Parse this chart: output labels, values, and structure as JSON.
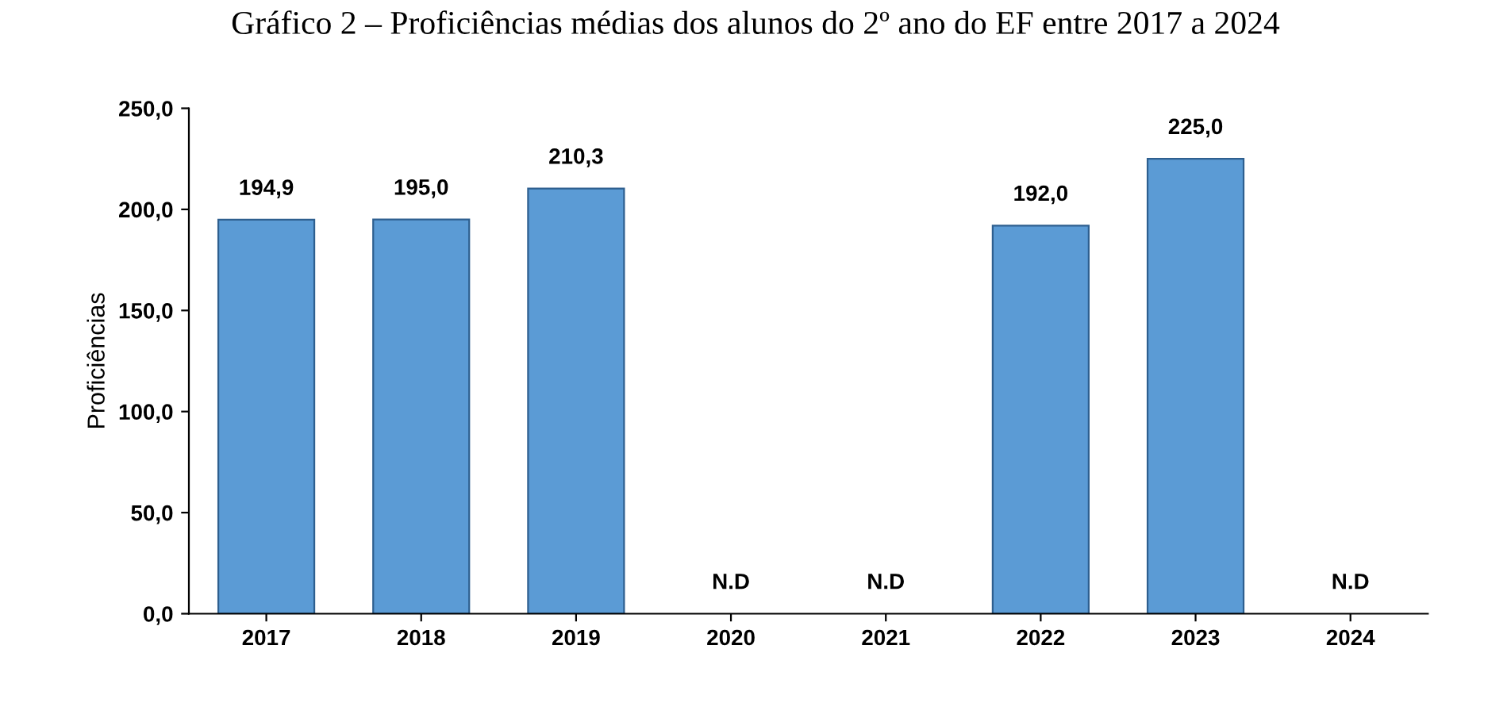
{
  "chart_data": {
    "type": "bar",
    "title": "Gráfico 2 – Proficiências médias dos alunos do 2º ano do EF entre 2017 a 2024",
    "ylabel": "Proficiências",
    "categories": [
      "2017",
      "2018",
      "2019",
      "2020",
      "2021",
      "2022",
      "2023",
      "2024"
    ],
    "values": [
      194.9,
      195.0,
      210.3,
      null,
      null,
      192.0,
      225.0,
      null
    ],
    "value_labels": [
      "194,9",
      "195,0",
      "210,3",
      "N.D",
      "N.D",
      "192,0",
      "225,0",
      "N.D"
    ],
    "color": "#5b9bd5",
    "ylim": [
      0,
      250
    ],
    "yticks": [
      {
        "value": 0,
        "label": "0,0"
      },
      {
        "value": 50,
        "label": "50,0"
      },
      {
        "value": 100,
        "label": "100,0"
      },
      {
        "value": 150,
        "label": "150,0"
      },
      {
        "value": 200,
        "label": "200,0"
      },
      {
        "value": 250,
        "label": "250,0"
      }
    ],
    "grid": false,
    "legend": false
  }
}
